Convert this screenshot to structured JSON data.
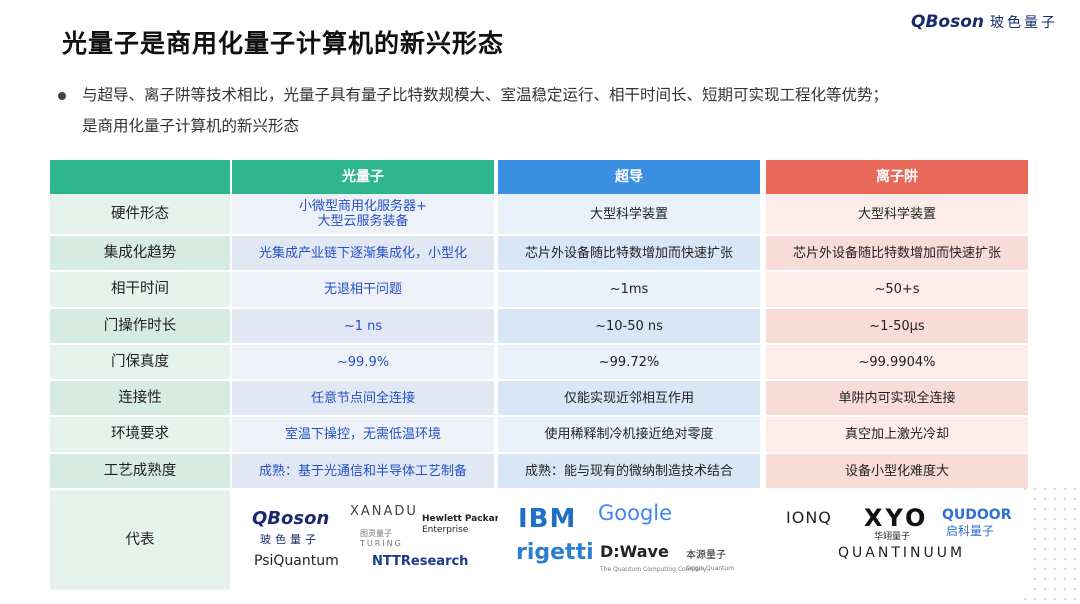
{
  "header": {
    "title": "光量子是商用化量子计算机的新兴形态",
    "brand": {
      "mark": "QBoson",
      "name": "玻色量子"
    }
  },
  "bullet": {
    "lines": [
      "与超导、离子阱等技术相比，光量子具有量子比特数规模大、室温稳定运行、相干时间长、短期可实现工程化等优势；",
      "是商用化量子计算机的新兴形态"
    ]
  },
  "table": {
    "columns": [
      "光量子",
      "超导",
      "离子阱"
    ],
    "rows": [
      [
        "硬件形态",
        "小微型商用化服务器+\n大型云服务装备",
        "大型科学装置",
        "大型科学装置"
      ],
      [
        "集成化趋势",
        "光集成产业链下逐渐集成化，小型化",
        "芯片外设备随比特数增加而快速扩张",
        "芯片外设备随比特数增加而快速扩张"
      ],
      [
        "相干时间",
        "无退相干问题",
        "~1ms",
        "~50+s"
      ],
      [
        "门操作时长",
        "~1 ns",
        "~10-50 ns",
        "~1-50μs"
      ],
      [
        "门保真度",
        "~99.9%",
        "~99.72%",
        "~99.9904%"
      ],
      [
        "连接性",
        "任意节点间全连接",
        "仅能实现近邻相互作用",
        "单阱内可实现全连接"
      ],
      [
        "环境要求",
        "室温下操控，无需低温环境",
        "使用稀释制冷机接近绝对零度",
        "真空加上激光冷却"
      ],
      [
        "工艺成熟度",
        "成熟：基于光通信和半导体工艺制备",
        "成熟：能与现有的微纳制造技术结合",
        "设备小型化难度大"
      ]
    ],
    "representatives": {
      "label": "代表",
      "photonic": [
        "QBoson",
        "玻色量子",
        "XANADU",
        "图灵量子",
        "TURING",
        "Hewlett Packard",
        "Enterprise",
        "PsiQuantum",
        "NTTResearch"
      ],
      "superconducting": [
        "IBM",
        "Google",
        "rigetti",
        "D:Wave",
        "The Quantum Computing Company",
        "本源量子",
        "Origin Quantum"
      ],
      "ion_trap": [
        "IONQ",
        "XYO",
        "华翊量子",
        "QUDOOR",
        "启科量子",
        "QUANTINUUM"
      ]
    }
  }
}
